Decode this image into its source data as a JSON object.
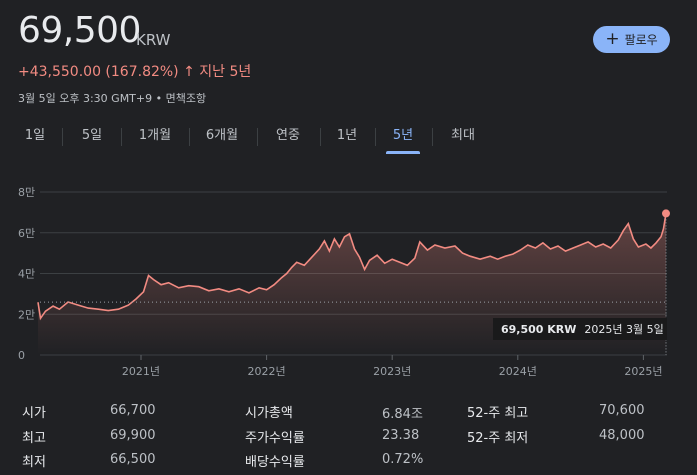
{
  "quote": {
    "price": "69,500",
    "currency": "KRW",
    "change": "+43,550.00 (167.82%)",
    "change_arrow": "↑",
    "change_period": "지난 5년",
    "timestamp": "3월 5일 오후 3:30 GMT+9 • 면책조항"
  },
  "follow_button": {
    "icon": "plus-icon",
    "label": "팔로우"
  },
  "tabs": [
    {
      "label": "1일"
    },
    {
      "label": "5일"
    },
    {
      "label": "1개월"
    },
    {
      "label": "6개월"
    },
    {
      "label": "연중"
    },
    {
      "label": "1년"
    },
    {
      "label": "5년",
      "active": true
    },
    {
      "label": "최대"
    }
  ],
  "chart_data": {
    "type": "area",
    "y_tick_labels": [
      "0",
      "2만",
      "4만",
      "6만",
      "8만"
    ],
    "ylim": [
      0,
      80000
    ],
    "x_tick_labels": [
      "2021년",
      "2022년",
      "2023년",
      "2024년",
      "2025년"
    ],
    "xlim": [
      2020.18,
      2025.18
    ],
    "grid": true,
    "line_color": "#f28b82",
    "baseline": 25950,
    "points": [
      [
        2020.18,
        25900
      ],
      [
        2020.2,
        18000
      ],
      [
        2020.24,
        21500
      ],
      [
        2020.3,
        24000
      ],
      [
        2020.35,
        22500
      ],
      [
        2020.42,
        26000
      ],
      [
        2020.5,
        24500
      ],
      [
        2020.58,
        23000
      ],
      [
        2020.66,
        22500
      ],
      [
        2020.74,
        21800
      ],
      [
        2020.82,
        22500
      ],
      [
        2020.9,
        24500
      ],
      [
        2020.96,
        27500
      ],
      [
        2021.02,
        31000
      ],
      [
        2021.06,
        39000
      ],
      [
        2021.1,
        37000
      ],
      [
        2021.16,
        34500
      ],
      [
        2021.22,
        35500
      ],
      [
        2021.3,
        33000
      ],
      [
        2021.38,
        34000
      ],
      [
        2021.46,
        33500
      ],
      [
        2021.54,
        31500
      ],
      [
        2021.62,
        32500
      ],
      [
        2021.7,
        31000
      ],
      [
        2021.78,
        32500
      ],
      [
        2021.86,
        30500
      ],
      [
        2021.94,
        33000
      ],
      [
        2022.0,
        32000
      ],
      [
        2022.06,
        34500
      ],
      [
        2022.12,
        38000
      ],
      [
        2022.16,
        40000
      ],
      [
        2022.2,
        43000
      ],
      [
        2022.24,
        45500
      ],
      [
        2022.3,
        44000
      ],
      [
        2022.36,
        48000
      ],
      [
        2022.42,
        52000
      ],
      [
        2022.46,
        56000
      ],
      [
        2022.5,
        51000
      ],
      [
        2022.54,
        57000
      ],
      [
        2022.58,
        53000
      ],
      [
        2022.62,
        58000
      ],
      [
        2022.66,
        59500
      ],
      [
        2022.7,
        52000
      ],
      [
        2022.74,
        48000
      ],
      [
        2022.78,
        42000
      ],
      [
        2022.82,
        46500
      ],
      [
        2022.88,
        49000
      ],
      [
        2022.94,
        45000
      ],
      [
        2023.0,
        47000
      ],
      [
        2023.06,
        45500
      ],
      [
        2023.12,
        44000
      ],
      [
        2023.18,
        47500
      ],
      [
        2023.22,
        55500
      ],
      [
        2023.28,
        51500
      ],
      [
        2023.34,
        54000
      ],
      [
        2023.42,
        52500
      ],
      [
        2023.5,
        53500
      ],
      [
        2023.56,
        50000
      ],
      [
        2023.62,
        48500
      ],
      [
        2023.7,
        47000
      ],
      [
        2023.78,
        48500
      ],
      [
        2023.84,
        47000
      ],
      [
        2023.9,
        48500
      ],
      [
        2023.96,
        49500
      ],
      [
        2024.02,
        51500
      ],
      [
        2024.08,
        54000
      ],
      [
        2024.14,
        52500
      ],
      [
        2024.2,
        55000
      ],
      [
        2024.26,
        52000
      ],
      [
        2024.32,
        53500
      ],
      [
        2024.38,
        51000
      ],
      [
        2024.44,
        52500
      ],
      [
        2024.5,
        54000
      ],
      [
        2024.56,
        55500
      ],
      [
        2024.62,
        53000
      ],
      [
        2024.68,
        54500
      ],
      [
        2024.74,
        52500
      ],
      [
        2024.8,
        56500
      ],
      [
        2024.84,
        61000
      ],
      [
        2024.88,
        64500
      ],
      [
        2024.92,
        57000
      ],
      [
        2024.96,
        53000
      ],
      [
        2025.02,
        54500
      ],
      [
        2025.06,
        52500
      ],
      [
        2025.1,
        55000
      ],
      [
        2025.14,
        58000
      ],
      [
        2025.16,
        62000
      ],
      [
        2025.18,
        69500
      ]
    ],
    "tooltip": {
      "price": "69,500 KRW",
      "date": "2025년 3월 5일"
    }
  },
  "stats": [
    {
      "label": "시가",
      "value": "66,700"
    },
    {
      "label": "최고",
      "value": "69,900"
    },
    {
      "label": "최저",
      "value": "66,500"
    },
    {
      "label": "시가총액",
      "value": "6.84조"
    },
    {
      "label": "주가수익률",
      "value": "23.38"
    },
    {
      "label": "배당수익률",
      "value": "0.72%"
    },
    {
      "label": "52-주 최고",
      "value": "70,600"
    },
    {
      "label": "52-주 최저",
      "value": "48,000"
    }
  ]
}
